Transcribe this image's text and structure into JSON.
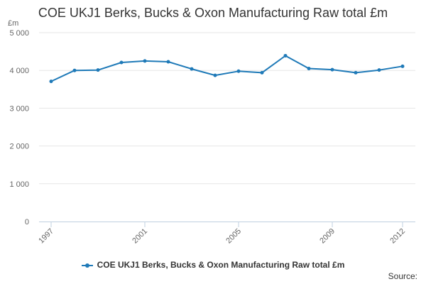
{
  "chart_data": {
    "type": "line",
    "title": "COE UKJ1 Berks, Bucks & Oxon Manufacturing Raw total £m",
    "ylabel": "£m",
    "xlabel": "",
    "x": [
      1997,
      1998,
      1999,
      2000,
      2001,
      2002,
      2003,
      2004,
      2005,
      2006,
      2007,
      2008,
      2009,
      2010,
      2011,
      2012
    ],
    "x_tick_labels": [
      "1997",
      "2001",
      "2005",
      "2009",
      "2012"
    ],
    "y_tick_labels": [
      "0",
      "1 000",
      "2 000",
      "3 000",
      "4 000",
      "5 000"
    ],
    "ylim": [
      0,
      5000
    ],
    "grid": true,
    "legend_position": "bottom",
    "series": [
      {
        "name": "COE UKJ1 Berks, Bucks & Oxon Manufacturing Raw total £m",
        "color": "#1f7ab8",
        "values": [
          3710,
          4000,
          4010,
          4210,
          4250,
          4230,
          4040,
          3870,
          3980,
          3940,
          4390,
          4050,
          4020,
          3940,
          4010,
          4110
        ]
      }
    ]
  },
  "footer": {
    "source_label": "Source:"
  }
}
